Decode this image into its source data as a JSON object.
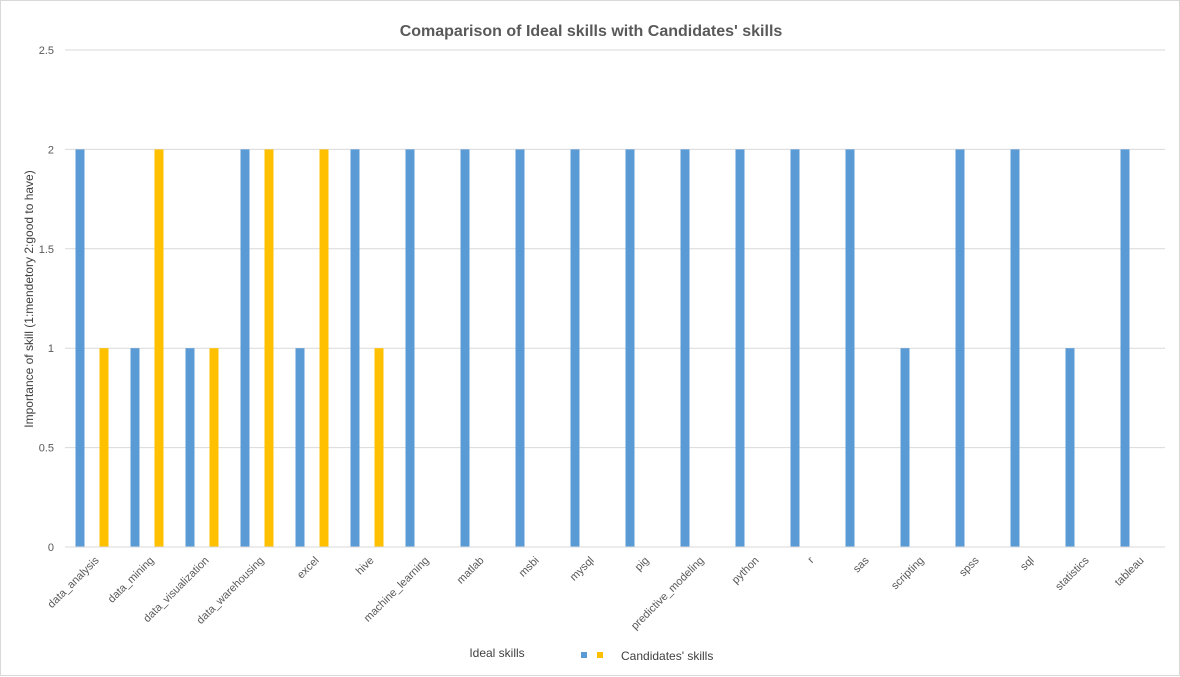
{
  "chart_data": {
    "type": "bar",
    "title": "Comaparison of Ideal skills with Candidates' skills",
    "xlabel": "Ideal skills",
    "ylabel": "Importance of skill (1:mendetory 2:good to have)",
    "ylim": [
      0,
      2.5
    ],
    "yticks": [
      "0",
      "0.5",
      "1",
      "1.5",
      "2",
      "2.5"
    ],
    "grid": true,
    "legend_position": "bottom",
    "categories": [
      "data_analysis",
      "data_mining",
      "data_visualization",
      "data_warehousing",
      "excel",
      "hive",
      "machine_learning",
      "matlab",
      "msbi",
      "mysql",
      "pig",
      "predictive_modeling",
      "python",
      "r",
      "sas",
      "scripting",
      "spss",
      "sql",
      "statistics",
      "tableau"
    ],
    "series": [
      {
        "color": "#5b9bd5",
        "values": [
          2,
          1,
          1,
          2,
          1,
          2,
          2,
          2,
          2,
          2,
          2,
          2,
          2,
          2,
          2,
          1,
          2,
          2,
          1,
          2
        ]
      },
      {
        "name": "Candidates' skills",
        "color": "#ffc000",
        "values": [
          1,
          2,
          1,
          2,
          2,
          1,
          null,
          null,
          null,
          null,
          null,
          null,
          null,
          null,
          null,
          null,
          null,
          null,
          null,
          null
        ]
      }
    ]
  }
}
